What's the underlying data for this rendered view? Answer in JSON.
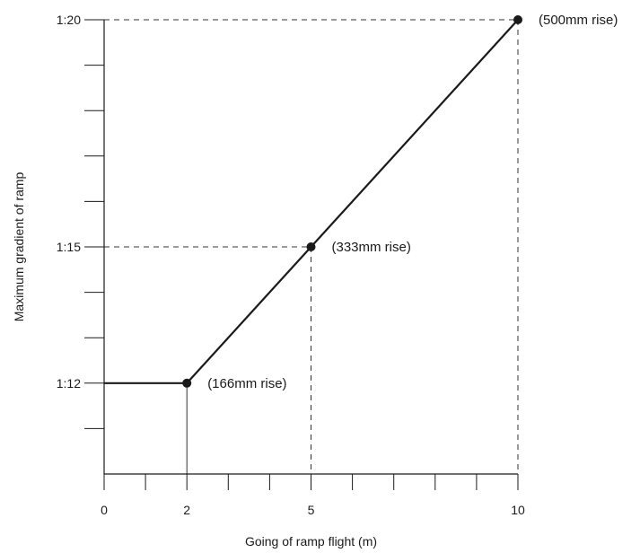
{
  "chart_data": {
    "type": "line",
    "title": "",
    "xlabel": "Going of ramp flight (m)",
    "ylabel": "Maximum gradient of ramp",
    "xlim": [
      0,
      10
    ],
    "ylim": [
      10,
      20
    ],
    "x_ticks": [
      0,
      1,
      2,
      3,
      4,
      5,
      6,
      7,
      8,
      9,
      10
    ],
    "x_tick_labels": [
      {
        "value": 0,
        "label": "0"
      },
      {
        "value": 2,
        "label": "2"
      },
      {
        "value": 5,
        "label": "5"
      },
      {
        "value": 10,
        "label": "10"
      }
    ],
    "y_ticks": [
      11,
      12,
      13,
      14,
      15,
      16,
      17,
      18,
      19,
      20
    ],
    "y_tick_labels": [
      {
        "value": 12,
        "label": "1:12"
      },
      {
        "value": 15,
        "label": "1:15"
      },
      {
        "value": 20,
        "label": "1:20"
      }
    ],
    "grid": false,
    "series": [
      {
        "x": [
          0,
          2,
          5,
          10
        ],
        "y": [
          12,
          12,
          15,
          20
        ]
      }
    ],
    "markers": [
      {
        "x": 2,
        "y": 12,
        "label": "(166mm rise)",
        "guide": "solid"
      },
      {
        "x": 5,
        "y": 15,
        "label": "(333mm rise)",
        "guide": "dashed"
      },
      {
        "x": 10,
        "y": 20,
        "label": "(500mm rise)",
        "guide": "dashed"
      }
    ],
    "colors": {
      "line": "#1a1a1a",
      "guide": "#333333"
    }
  }
}
